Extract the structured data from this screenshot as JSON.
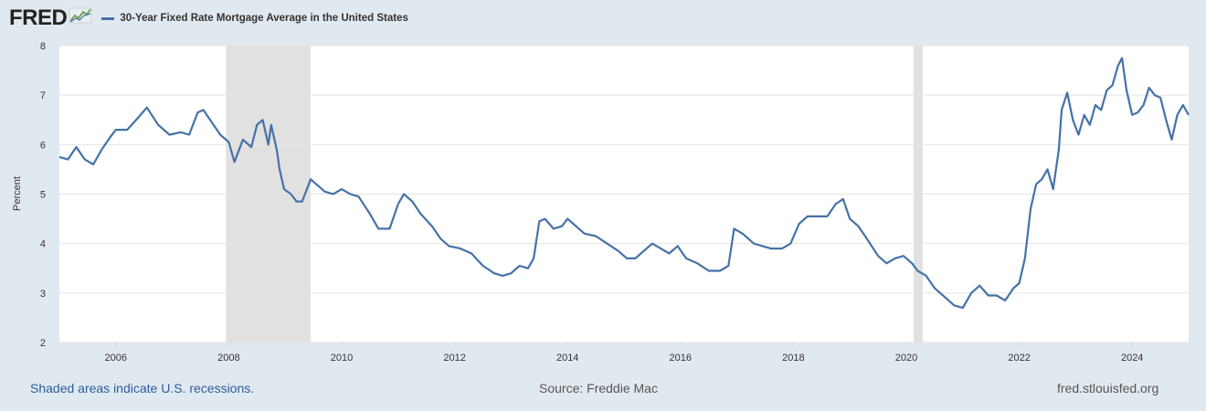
{
  "header": {
    "logo_text": "FRED",
    "series_title": "30-Year Fixed Rate Mortgage Average in the United States",
    "series_color": "#4572a7"
  },
  "footer": {
    "recession_note": "Shaded areas indicate U.S. recessions.",
    "source": "Source: Freddie Mac",
    "site": "fred.stlouisfed.org"
  },
  "chart_data": {
    "type": "line",
    "title": "30-Year Fixed Rate Mortgage Average in the United States",
    "ylabel": "Percent",
    "xlim": [
      2005.0,
      2025.0
    ],
    "ylim": [
      2,
      8
    ],
    "x_ticks": [
      "2006",
      "2008",
      "2010",
      "2012",
      "2014",
      "2016",
      "2018",
      "2020",
      "2022",
      "2024"
    ],
    "y_ticks": [
      "2",
      "3",
      "4",
      "5",
      "6",
      "7",
      "8"
    ],
    "grid": true,
    "recessions": [
      [
        2007.95,
        2009.45
      ],
      [
        2020.13,
        2020.29
      ]
    ],
    "series": [
      {
        "name": "30-Year Fixed Rate Mortgage Average in the United States",
        "color": "#4572a7",
        "x": [
          2005.0,
          2005.15,
          2005.3,
          2005.45,
          2005.6,
          2005.75,
          2005.9,
          2006.0,
          2006.2,
          2006.4,
          2006.55,
          2006.75,
          2006.95,
          2007.15,
          2007.3,
          2007.45,
          2007.55,
          2007.7,
          2007.85,
          2008.0,
          2008.1,
          2008.25,
          2008.4,
          2008.5,
          2008.6,
          2008.7,
          2008.75,
          2008.85,
          2008.9,
          2008.98,
          2009.1,
          2009.2,
          2009.3,
          2009.45,
          2009.55,
          2009.7,
          2009.85,
          2010.0,
          2010.15,
          2010.3,
          2010.5,
          2010.65,
          2010.85,
          2011.0,
          2011.1,
          2011.25,
          2011.4,
          2011.6,
          2011.75,
          2011.9,
          2012.1,
          2012.3,
          2012.5,
          2012.7,
          2012.85,
          2013.0,
          2013.15,
          2013.3,
          2013.4,
          2013.5,
          2013.6,
          2013.75,
          2013.9,
          2014.0,
          2014.15,
          2014.3,
          2014.5,
          2014.7,
          2014.9,
          2015.05,
          2015.2,
          2015.35,
          2015.5,
          2015.65,
          2015.8,
          2015.95,
          2016.1,
          2016.3,
          2016.5,
          2016.7,
          2016.85,
          2016.95,
          2017.1,
          2017.3,
          2017.45,
          2017.6,
          2017.8,
          2017.95,
          2018.1,
          2018.25,
          2018.4,
          2018.6,
          2018.75,
          2018.88,
          2019.0,
          2019.15,
          2019.3,
          2019.5,
          2019.65,
          2019.8,
          2019.95,
          2020.1,
          2020.2,
          2020.35,
          2020.5,
          2020.7,
          2020.85,
          2021.0,
          2021.15,
          2021.3,
          2021.45,
          2021.6,
          2021.75,
          2021.9,
          2022.0,
          2022.1,
          2022.2,
          2022.3,
          2022.4,
          2022.5,
          2022.6,
          2022.7,
          2022.75,
          2022.85,
          2022.95,
          2023.05,
          2023.15,
          2023.25,
          2023.35,
          2023.45,
          2023.55,
          2023.65,
          2023.75,
          2023.82,
          2023.9,
          2024.0,
          2024.1,
          2024.2,
          2024.3,
          2024.4,
          2024.5,
          2024.6,
          2024.7,
          2024.8,
          2024.9,
          2025.0
        ],
        "values": [
          5.75,
          5.7,
          5.95,
          5.7,
          5.6,
          5.9,
          6.15,
          6.3,
          6.3,
          6.55,
          6.75,
          6.4,
          6.2,
          6.25,
          6.2,
          6.65,
          6.7,
          6.45,
          6.2,
          6.05,
          5.65,
          6.1,
          5.95,
          6.4,
          6.5,
          6.0,
          6.4,
          5.9,
          5.5,
          5.1,
          5.0,
          4.85,
          4.85,
          5.3,
          5.2,
          5.05,
          5.0,
          5.1,
          5.0,
          4.95,
          4.6,
          4.3,
          4.3,
          4.8,
          5.0,
          4.85,
          4.6,
          4.35,
          4.1,
          3.95,
          3.9,
          3.8,
          3.55,
          3.4,
          3.35,
          3.4,
          3.55,
          3.5,
          3.7,
          4.45,
          4.5,
          4.3,
          4.35,
          4.5,
          4.35,
          4.2,
          4.15,
          4.0,
          3.85,
          3.7,
          3.7,
          3.85,
          4.0,
          3.9,
          3.8,
          3.95,
          3.7,
          3.6,
          3.45,
          3.45,
          3.55,
          4.3,
          4.2,
          4.0,
          3.95,
          3.9,
          3.9,
          4.0,
          4.4,
          4.55,
          4.55,
          4.55,
          4.8,
          4.9,
          4.5,
          4.35,
          4.1,
          3.75,
          3.6,
          3.7,
          3.75,
          3.6,
          3.45,
          3.35,
          3.1,
          2.9,
          2.75,
          2.7,
          3.0,
          3.15,
          2.95,
          2.95,
          2.85,
          3.1,
          3.2,
          3.7,
          4.7,
          5.2,
          5.3,
          5.5,
          5.1,
          5.9,
          6.7,
          7.05,
          6.5,
          6.2,
          6.6,
          6.4,
          6.8,
          6.7,
          7.1,
          7.2,
          7.6,
          7.75,
          7.1,
          6.6,
          6.65,
          6.8,
          7.15,
          7.0,
          6.95,
          6.5,
          6.1,
          6.6,
          6.8,
          6.6
        ]
      }
    ]
  }
}
